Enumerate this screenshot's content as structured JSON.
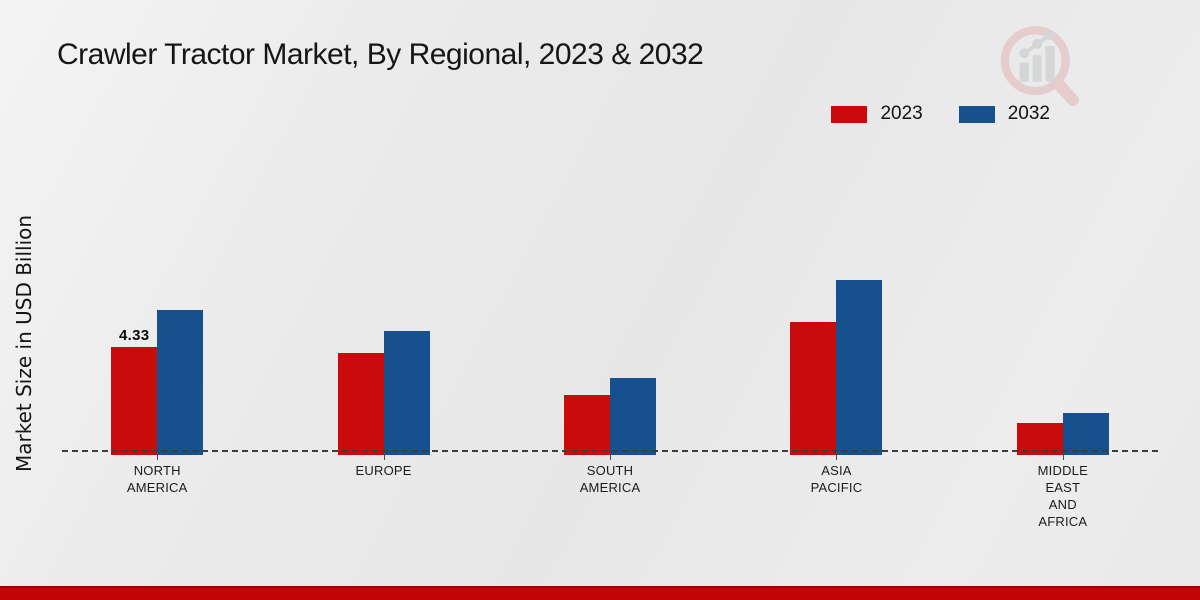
{
  "title": "Crawler Tractor Market, By Regional, 2023 & 2032",
  "y_axis_label": "Market Size in USD Billion",
  "legend": {
    "items": [
      {
        "label": "2023",
        "color": "#c90b0b"
      },
      {
        "label": "2032",
        "color": "#17508f"
      }
    ],
    "position": "top-right"
  },
  "logo_icon": "magnifier-bar-chart-logo",
  "footer": {
    "accent_color": "#c40505"
  },
  "chart_data": {
    "type": "bar",
    "title": "Crawler Tractor Market, By Regional, 2023 & 2032",
    "xlabel": "",
    "ylabel": "Market Size in USD Billion",
    "unit": "USD Billion",
    "ylim": [
      0,
      8
    ],
    "grid": false,
    "legend_position": "top-right",
    "axis_style": "dashed horizontal baseline only, no y-axis ticks",
    "categories": [
      "NORTH AMERICA",
      "EUROPE",
      "SOUTH AMERICA",
      "ASIA PACIFIC",
      "MIDDLE EAST AND AFRICA"
    ],
    "category_label_lines": [
      [
        "NORTH",
        "AMERICA"
      ],
      [
        "EUROPE"
      ],
      [
        "SOUTH",
        "AMERICA"
      ],
      [
        "ASIA",
        "PACIFIC"
      ],
      [
        "MIDDLE",
        "EAST",
        "AND",
        "AFRICA"
      ]
    ],
    "series": [
      {
        "name": "2023",
        "color": "#c90b0b",
        "values": [
          4.33,
          4.1,
          2.35,
          5.35,
          1.2
        ],
        "data_labels": [
          "4.33",
          "",
          "",
          "",
          ""
        ]
      },
      {
        "name": "2032",
        "color": "#17508f",
        "values": [
          5.85,
          5.0,
          3.05,
          7.1,
          1.6
        ],
        "data_labels": [
          "",
          "",
          "",
          "",
          ""
        ]
      }
    ]
  }
}
